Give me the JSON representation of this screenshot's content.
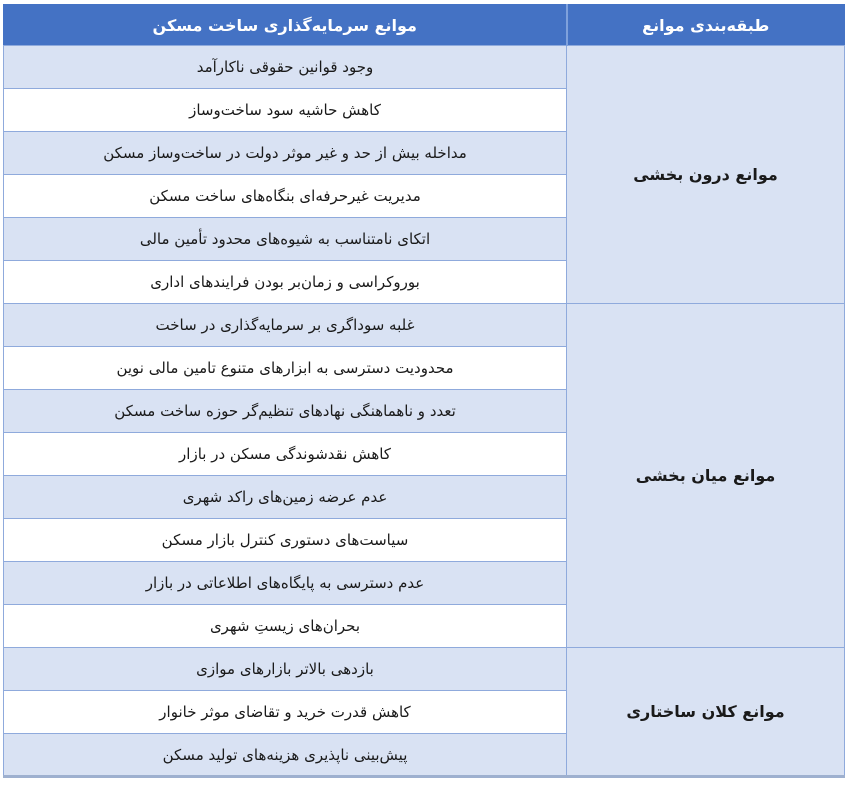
{
  "table": {
    "header": {
      "barriers_label": "موانع سرمایه‌گذاری ساخت مسکن",
      "category_label": "طبقه‌بندی موانع"
    },
    "categories": [
      {
        "label": "موانع درون بخشی",
        "items": [
          "وجود قوانین حقوقی ناکارآمد",
          "کاهش حاشیه سود ساخت‌وساز",
          "مداخله بیش از حد و غیر موثر دولت در ساخت‌وساز مسکن",
          "مدیریت غیرحرفه‌ای بنگاه‌های ساخت مسکن",
          "اتکای نامتناسب به شیوه‌های محدود تأمین مالی",
          "بوروکراسی و زمان‌بر بودن فرایندهای اداری"
        ]
      },
      {
        "label": "موانع میان بخشی",
        "items": [
          "غلبه سوداگری بر سرمایه‌گذاری در ساخت",
          "محدودیت دسترسی به ابزارهای متنوع تامین مالی نوین",
          "تعدد و ناهماهنگی نهادهای تنظیم‌گر حوزه ساخت مسکن",
          "کاهش نقدشوندگی مسکن در بازار",
          "عدم عرضه زمین‌های راکد شهری",
          "سیاست‌های دستوری کنترل بازار مسکن",
          "عدم دسترسی به پایگاه‌های اطلاعاتی در بازار",
          "بحران‌های زیستِ شهری"
        ]
      },
      {
        "label": "موانع کلان ساختاری",
        "items": [
          "بازدهی بالاتر بازارهای موازی",
          "کاهش قدرت خرید و تقاضای موثر خانوار",
          "پیش‌بینی ناپذیری هزینه‌های تولید مسکن"
        ]
      }
    ],
    "colors": {
      "header_bg": "#4472C4",
      "stripe_bg": "#D9E2F3",
      "border": "#8FAADC",
      "outer_bottom": "#9EB0CF"
    }
  }
}
